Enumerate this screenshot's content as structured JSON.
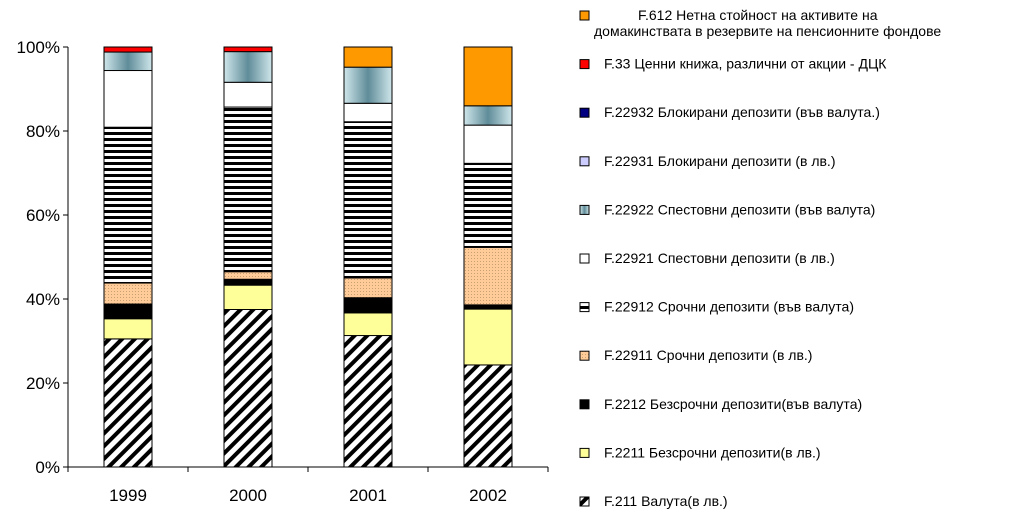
{
  "chart_data": {
    "type": "bar",
    "stacked": true,
    "percent_stacked": true,
    "categories": [
      "1999",
      "2000",
      "2001",
      "2002"
    ],
    "y_ticks": [
      "0%",
      "20%",
      "40%",
      "60%",
      "80%",
      "100%"
    ],
    "ylim": [
      0,
      100
    ],
    "grid": false,
    "legend_position": "right",
    "series": [
      {
        "name": "F.211 Валута(в лв.)",
        "color": "#000000",
        "pattern": "diag",
        "values": [
          30.5,
          37.5,
          31.3,
          24.3
        ]
      },
      {
        "name": "F.2211 Безсрочни депозити(в лв.)",
        "color": "#ffff99",
        "pattern": "solid",
        "values": [
          4.8,
          5.8,
          5.4,
          13.3
        ]
      },
      {
        "name": "F.2212 Безсрочни депозити(във валута)",
        "color": "#000000",
        "pattern": "solid",
        "values": [
          3.5,
          1.4,
          3.6,
          1.0
        ]
      },
      {
        "name": "F.22911 Срочни депозити (в лв.)",
        "color": "#ffcc99",
        "pattern": "dots",
        "values": [
          5.0,
          1.8,
          4.7,
          13.7
        ]
      },
      {
        "name": "F.22912 Срочни депозити (във валута)",
        "color": "#000000",
        "pattern": "hstripe",
        "values": [
          37.1,
          39.2,
          37.2,
          20.0
        ]
      },
      {
        "name": "F.22921 Спестовни депозити (в лв.)",
        "color": "#ffffff",
        "pattern": "solid",
        "values": [
          13.5,
          5.9,
          4.4,
          9.1
        ]
      },
      {
        "name": "F.22922 Спестовни депозити (във валута)",
        "color": "#8fb3bd",
        "pattern": "gradient",
        "values": [
          4.4,
          7.3,
          8.6,
          4.6
        ]
      },
      {
        "name": "F.22931 Блокирани депозити (в лв.)",
        "color": "#ccccff",
        "pattern": "solid",
        "values": [
          0,
          0,
          0,
          0
        ]
      },
      {
        "name": "F.22932 Блокирани депозити (във валута.)",
        "color": "#000080",
        "pattern": "solid",
        "values": [
          0,
          0,
          0,
          0
        ]
      },
      {
        "name": "F.33 Ценни книжа, различни от акции - ДЦК",
        "color": "#ff0000",
        "pattern": "solid",
        "values": [
          1.2,
          1.1,
          0,
          0
        ]
      },
      {
        "name": "F.612 Нетна стойност на активите на",
        "name_line2": "домакинствата в резервите на пенсионните фондове",
        "color": "#ff9900",
        "pattern": "solid",
        "values": [
          0,
          0,
          4.8,
          14.0
        ]
      }
    ]
  }
}
